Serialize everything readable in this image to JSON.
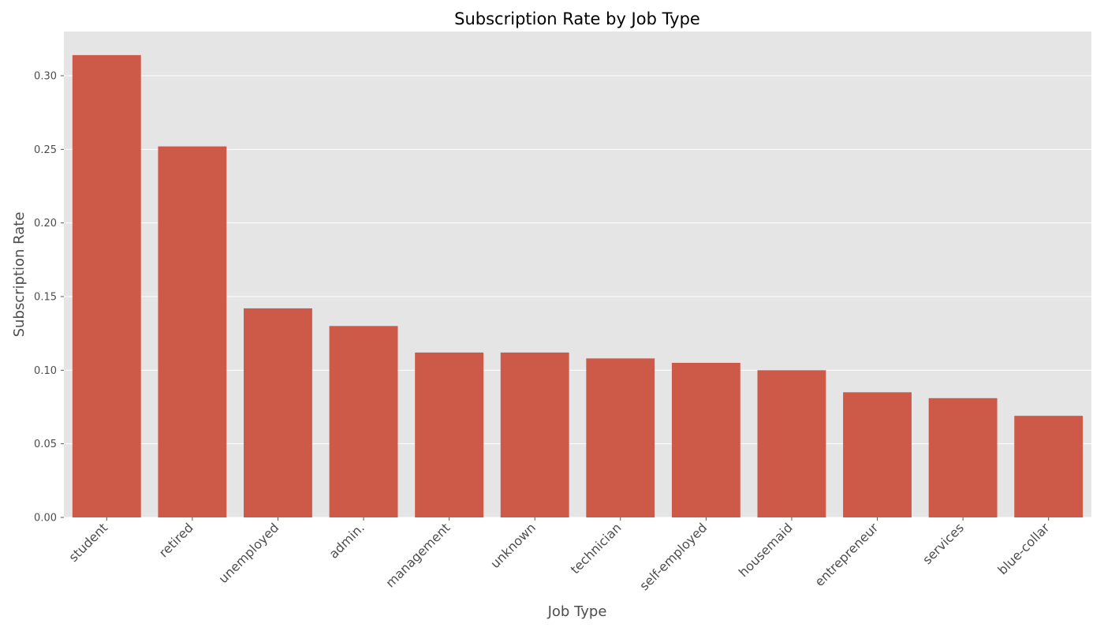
{
  "chart_data": {
    "type": "bar",
    "title": "Subscription Rate by Job Type",
    "xlabel": "Job Type",
    "ylabel": "Subscription Rate",
    "categories": [
      "student",
      "retired",
      "unemployed",
      "admin.",
      "management",
      "unknown",
      "technician",
      "self-employed",
      "housemaid",
      "entrepreneur",
      "services",
      "blue-collar"
    ],
    "values": [
      0.314,
      0.252,
      0.142,
      0.13,
      0.112,
      0.112,
      0.108,
      0.105,
      0.1,
      0.085,
      0.081,
      0.069
    ],
    "ylim": [
      0,
      0.33
    ],
    "yticks": [
      0.0,
      0.05,
      0.1,
      0.15,
      0.2,
      0.25,
      0.3
    ],
    "ytick_labels": [
      "0.00",
      "0.05",
      "0.10",
      "0.15",
      "0.20",
      "0.25",
      "0.30"
    ],
    "grid": true,
    "legend": "none",
    "colors": {
      "bar": "#cd5a48",
      "plot_bg": "#e5e5e5",
      "grid": "#ffffff",
      "text": "#4d4d4d"
    }
  }
}
